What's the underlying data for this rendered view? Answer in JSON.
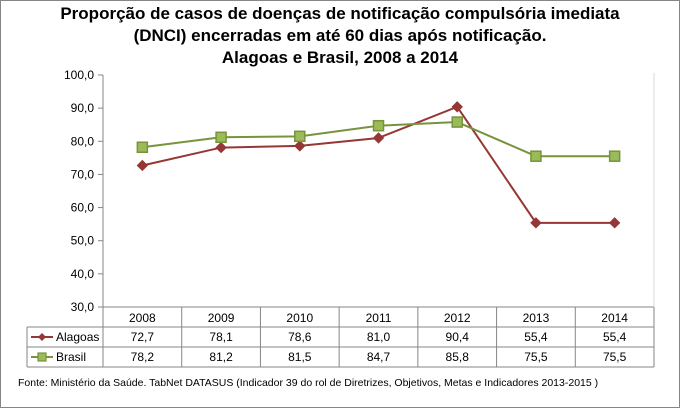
{
  "chart_data": {
    "type": "line",
    "title": "Proporção de casos de doenças de notificação compulsória imediata (DNCI) encerradas em até 60 dias após notificação. Alagoas e Brasil, 2008 a 2014",
    "title_lines": [
      "Proporção de casos de doenças de notificação compulsória imediata",
      "(DNCI) encerradas em até 60 dias após notificação.",
      "Alagoas e Brasil, 2008 a 2014"
    ],
    "categories": [
      "2008",
      "2009",
      "2010",
      "2011",
      "2012",
      "2013",
      "2014"
    ],
    "series": [
      {
        "name": "Alagoas",
        "color": "#953735",
        "marker": "diamond",
        "values": [
          72.7,
          78.1,
          78.6,
          81.0,
          90.4,
          55.4,
          55.4
        ],
        "labels": [
          "72,7",
          "78,1",
          "78,6",
          "81,0",
          "90,4",
          "55,4",
          "55,4"
        ]
      },
      {
        "name": "Brasil",
        "color": "#77933C",
        "marker_fill": "#9BBB59",
        "marker": "square",
        "values": [
          78.2,
          81.2,
          81.5,
          84.7,
          85.8,
          75.5,
          75.5
        ],
        "labels": [
          "78,2",
          "81,2",
          "81,5",
          "84,7",
          "85,8",
          "75,5",
          "75,5"
        ]
      }
    ],
    "xlabel": "",
    "ylabel": "",
    "ylim": [
      30,
      100
    ],
    "yticks": [
      30,
      40,
      50,
      60,
      70,
      80,
      90,
      100
    ],
    "ytick_labels": [
      "30,0",
      "40,0",
      "50,0",
      "60,0",
      "70,0",
      "80,0",
      "90,0",
      "100,0"
    ],
    "grid": false,
    "legend": "data-table-below"
  },
  "source": "Fonte: Ministério da Saúde. TabNet DATASUS (Indicador 39 do rol de Diretrizes, Objetivos, Metas e Indicadores 2013-2015 )"
}
